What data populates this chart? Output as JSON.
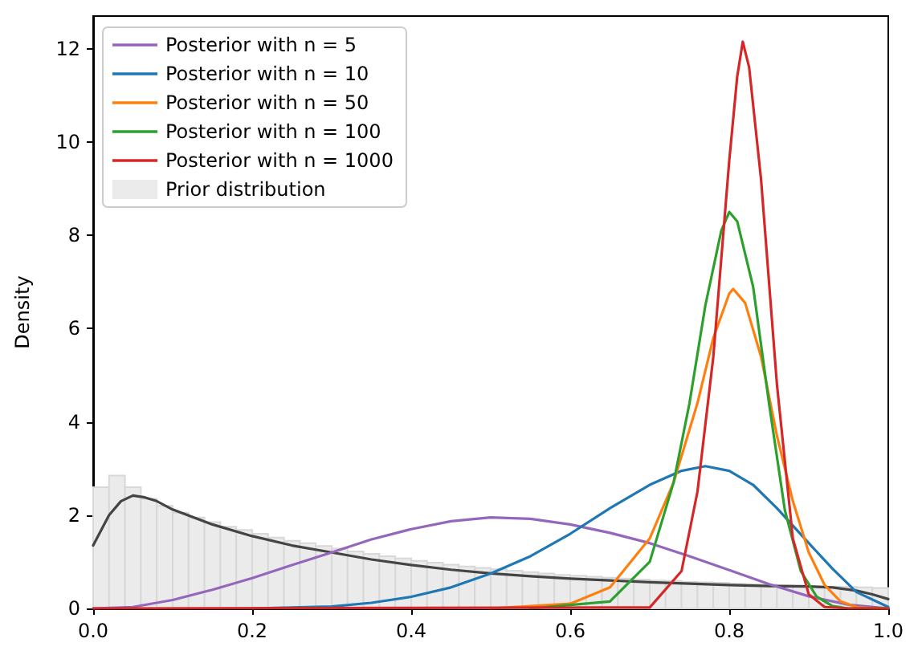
{
  "chart_data": {
    "type": "line",
    "ylabel": "Density",
    "xlim": [
      0,
      1
    ],
    "ylim": [
      0,
      12.7
    ],
    "xticks": [
      {
        "value": 0,
        "label": "0.0"
      },
      {
        "value": 0.2,
        "label": "0.2"
      },
      {
        "value": 0.4,
        "label": "0.4"
      },
      {
        "value": 0.6,
        "label": "0.6"
      },
      {
        "value": 0.8,
        "label": "0.8"
      },
      {
        "value": 1,
        "label": "1.0"
      }
    ],
    "yticks": [
      0,
      2,
      4,
      6,
      8,
      10,
      12
    ],
    "grid": false,
    "legend": "top left",
    "marker": "none",
    "line_style": "solid",
    "series": [
      {
        "type": "histogram",
        "name": "Prior distribution",
        "color": "#ebebeb",
        "bins": [
          0,
          0.02,
          0.04,
          0.06,
          0.08,
          0.1,
          0.12,
          0.14,
          0.16,
          0.18,
          0.2,
          0.22,
          0.24,
          0.26,
          0.28,
          0.3,
          0.32,
          0.34,
          0.36,
          0.38,
          0.4,
          0.42,
          0.44,
          0.46,
          0.48,
          0.5,
          0.52,
          0.54,
          0.56,
          0.58,
          0.6,
          0.62,
          0.64,
          0.66,
          0.68,
          0.7,
          0.72,
          0.74,
          0.76,
          0.78,
          0.8,
          0.82,
          0.84,
          0.86,
          0.88,
          0.9,
          0.92,
          0.94,
          0.96,
          0.98,
          1
        ],
        "values": [
          2.6,
          2.85,
          2.6,
          2.35,
          2.2,
          2.05,
          1.95,
          1.85,
          1.75,
          1.68,
          1.6,
          1.52,
          1.45,
          1.4,
          1.34,
          1.28,
          1.22,
          1.17,
          1.12,
          1.07,
          1.02,
          0.98,
          0.94,
          0.9,
          0.87,
          0.84,
          0.81,
          0.78,
          0.75,
          0.72,
          0.7,
          0.68,
          0.66,
          0.64,
          0.62,
          0.6,
          0.59,
          0.57,
          0.56,
          0.55,
          0.53,
          0.52,
          0.51,
          0.5,
          0.49,
          0.48,
          0.47,
          0.46,
          0.45,
          0.44
        ]
      },
      {
        "color": "#444444",
        "x": [
          0,
          0.02,
          0.035,
          0.05,
          0.065,
          0.08,
          0.1,
          0.15,
          0.2,
          0.25,
          0.3,
          0.35,
          0.4,
          0.45,
          0.5,
          0.55,
          0.6,
          0.65,
          0.7,
          0.75,
          0.8,
          0.85,
          0.9,
          0.93,
          0.96,
          0.98,
          1
        ],
        "values": [
          1.35,
          2.0,
          2.3,
          2.42,
          2.38,
          2.3,
          2.12,
          1.8,
          1.55,
          1.35,
          1.2,
          1.05,
          0.93,
          0.83,
          0.75,
          0.69,
          0.64,
          0.6,
          0.56,
          0.53,
          0.5,
          0.48,
          0.47,
          0.45,
          0.38,
          0.3,
          0.2
        ]
      },
      {
        "name": "Posterior with n = 5",
        "color": "#9467bd",
        "x": [
          0,
          0.05,
          0.1,
          0.15,
          0.2,
          0.25,
          0.3,
          0.35,
          0.4,
          0.45,
          0.5,
          0.55,
          0.6,
          0.65,
          0.7,
          0.75,
          0.8,
          0.85,
          0.9,
          0.95,
          1
        ],
        "values": [
          0,
          0.03,
          0.18,
          0.4,
          0.65,
          0.93,
          1.2,
          1.48,
          1.7,
          1.87,
          1.95,
          1.92,
          1.8,
          1.62,
          1.4,
          1.12,
          0.82,
          0.52,
          0.26,
          0.08,
          0
        ]
      },
      {
        "name": "Posterior with n = 10",
        "color": "#1f77b4",
        "x": [
          0.2,
          0.3,
          0.35,
          0.4,
          0.45,
          0.5,
          0.55,
          0.6,
          0.65,
          0.7,
          0.74,
          0.77,
          0.8,
          0.83,
          0.86,
          0.9,
          0.93,
          0.96,
          1
        ],
        "values": [
          0,
          0.04,
          0.12,
          0.25,
          0.45,
          0.75,
          1.12,
          1.6,
          2.15,
          2.65,
          2.95,
          3.05,
          2.95,
          2.65,
          2.15,
          1.4,
          0.85,
          0.35,
          0.03
        ]
      },
      {
        "name": "Posterior with n = 50",
        "color": "#ff7f0e",
        "x": [
          0.5,
          0.6,
          0.65,
          0.7,
          0.73,
          0.76,
          0.78,
          0.8,
          0.805,
          0.82,
          0.84,
          0.86,
          0.88,
          0.9,
          0.92,
          0.94,
          0.96,
          0.98,
          1
        ],
        "values": [
          0,
          0.1,
          0.45,
          1.5,
          2.7,
          4.4,
          5.8,
          6.75,
          6.85,
          6.55,
          5.4,
          3.7,
          2.3,
          1.2,
          0.5,
          0.15,
          0.03,
          0,
          0
        ]
      },
      {
        "name": "Posterior with n = 100",
        "color": "#2ca02c",
        "x": [
          0.55,
          0.65,
          0.7,
          0.73,
          0.75,
          0.77,
          0.79,
          0.8,
          0.81,
          0.83,
          0.85,
          0.87,
          0.89,
          0.91,
          0.93,
          0.95,
          1
        ],
        "values": [
          0,
          0.15,
          1.0,
          2.7,
          4.4,
          6.5,
          8.1,
          8.5,
          8.3,
          6.9,
          4.4,
          2.1,
          0.8,
          0.25,
          0.05,
          0,
          0
        ]
      },
      {
        "name": "Posterior with n = 1000",
        "color": "#d62728",
        "x": [
          0,
          0.7,
          0.74,
          0.76,
          0.78,
          0.8,
          0.81,
          0.817,
          0.825,
          0.84,
          0.86,
          0.88,
          0.9,
          0.92,
          0.95,
          1
        ],
        "values": [
          0,
          0.02,
          0.8,
          2.5,
          5.4,
          9.6,
          11.4,
          12.15,
          11.6,
          9.2,
          4.8,
          1.5,
          0.3,
          0.03,
          0,
          0
        ]
      }
    ]
  }
}
